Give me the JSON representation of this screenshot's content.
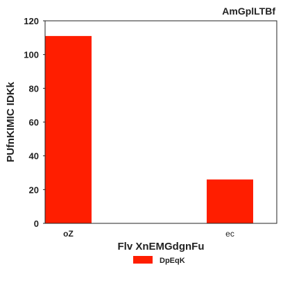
{
  "chart_data": {
    "type": "bar",
    "title": "AmGplLTBf",
    "xlabel": "Flv XnEMGdgnFu",
    "ylabel": "PUfnKIMIC IDKk",
    "categories": [
      "oZ",
      "ec"
    ],
    "category_label_bold": [
      true,
      false
    ],
    "series": [
      {
        "name": "DpEqK",
        "values": [
          111,
          26
        ],
        "color": "#ff1e00"
      }
    ],
    "ylim": [
      0,
      120
    ],
    "yticks": [
      0,
      20,
      40,
      60,
      80,
      100,
      120
    ],
    "grid": false,
    "legend_position": "bottom-center"
  }
}
